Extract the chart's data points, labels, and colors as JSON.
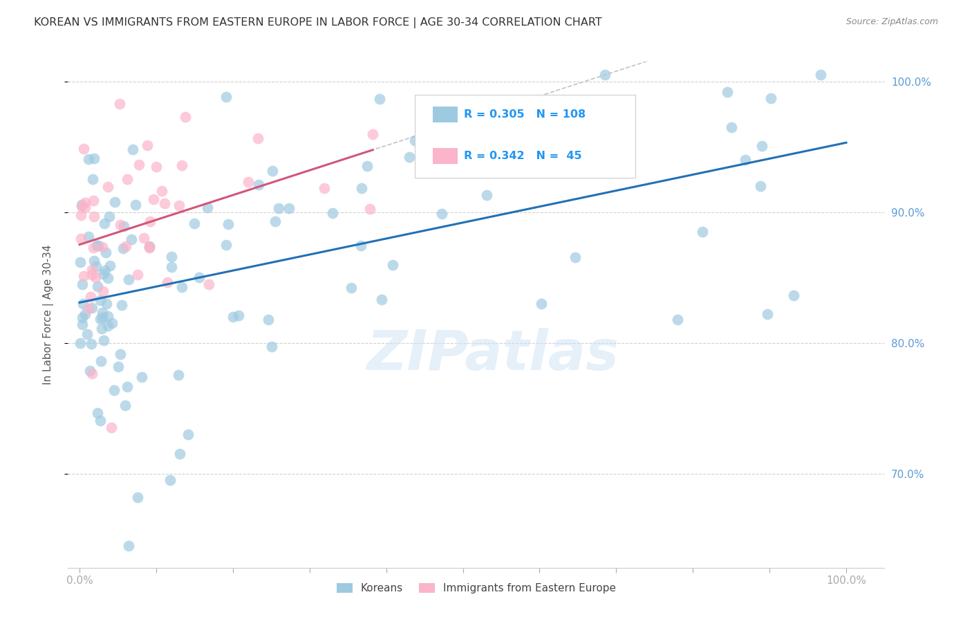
{
  "title": "KOREAN VS IMMIGRANTS FROM EASTERN EUROPE IN LABOR FORCE | AGE 30-34 CORRELATION CHART",
  "source": "Source: ZipAtlas.com",
  "ylabel_left": "In Labor Force | Age 30-34",
  "ylim": [
    0.628,
    1.015
  ],
  "xlim": [
    -0.015,
    1.05
  ],
  "blue_color": "#9ecae1",
  "blue_color_line": "#2171b5",
  "pink_color": "#fbb4c9",
  "pink_color_line": "#d1567a",
  "dashed_color": "#bbbbbb",
  "grid_color": "#d0d0d0",
  "r_blue": 0.305,
  "n_blue": 108,
  "r_pink": 0.342,
  "n_pink": 45,
  "legend_label_blue": "Koreans",
  "legend_label_pink": "Immigrants from Eastern Europe",
  "watermark": "ZIPatlas",
  "axis_label_color": "#5b9bd5",
  "tick_label_color_right": "#5b9bd5",
  "title_color": "#333333",
  "source_color": "#888888",
  "background_color": "#ffffff",
  "title_fontsize": 11.5,
  "legend_text_color": "#333333",
  "legend_r_n_color": "#2196f3"
}
